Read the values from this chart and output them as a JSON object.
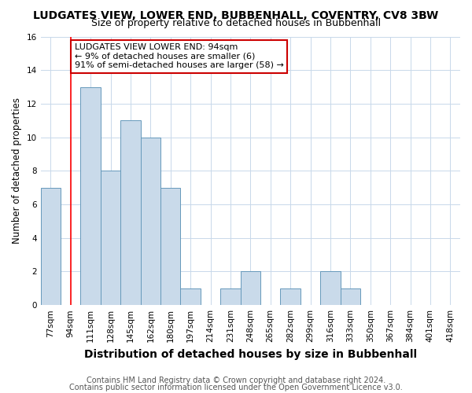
{
  "title": "LUDGATES VIEW, LOWER END, BUBBENHALL, COVENTRY, CV8 3BW",
  "subtitle": "Size of property relative to detached houses in Bubbenhall",
  "xlabel": "Distribution of detached houses by size in Bubbenhall",
  "ylabel": "Number of detached properties",
  "footnote1": "Contains HM Land Registry data © Crown copyright and database right 2024.",
  "footnote2": "Contains public sector information licensed under the Open Government Licence v3.0.",
  "categories": [
    "77sqm",
    "94sqm",
    "111sqm",
    "128sqm",
    "145sqm",
    "162sqm",
    "180sqm",
    "197sqm",
    "214sqm",
    "231sqm",
    "248sqm",
    "265sqm",
    "282sqm",
    "299sqm",
    "316sqm",
    "333sqm",
    "350sqm",
    "367sqm",
    "384sqm",
    "401sqm",
    "418sqm"
  ],
  "values": [
    7,
    0,
    13,
    8,
    11,
    10,
    7,
    1,
    0,
    1,
    2,
    0,
    1,
    0,
    2,
    1,
    0,
    0,
    0,
    0,
    0
  ],
  "bar_color": "#c9daea",
  "bar_edge_color": "#6699bb",
  "red_line_index": 1,
  "annotation_title": "LUDGATES VIEW LOWER END: 94sqm",
  "annotation_line1": "← 9% of detached houses are smaller (6)",
  "annotation_line2": "91% of semi-detached houses are larger (58) →",
  "annotation_box_facecolor": "#ffffff",
  "annotation_box_edgecolor": "#cc0000",
  "ylim": [
    0,
    16
  ],
  "yticks": [
    0,
    2,
    4,
    6,
    8,
    10,
    12,
    14,
    16
  ],
  "bg_color": "#ffffff",
  "grid_color": "#c8d8ea",
  "title_fontsize": 10,
  "subtitle_fontsize": 9,
  "ylabel_fontsize": 8.5,
  "xlabel_fontsize": 10,
  "tick_fontsize": 7.5,
  "annot_fontsize": 8,
  "footnote_fontsize": 7
}
